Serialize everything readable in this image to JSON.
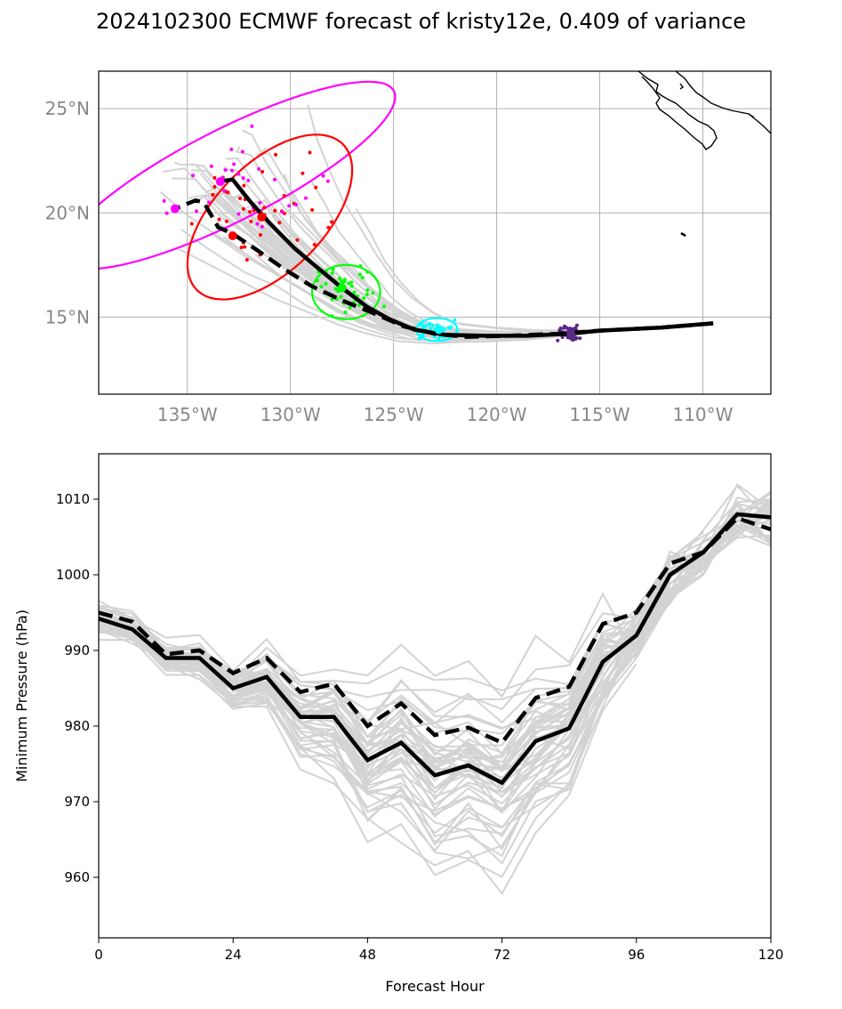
{
  "title": "2024102300 ECMWF forecast of kristy12e, 0.409 of variance",
  "chart_data": [
    {
      "type": "map-track",
      "x_ticks": [
        "135°W",
        "130°W",
        "125°W",
        "120°W",
        "115°W",
        "110°W"
      ],
      "y_ticks": [
        "15°N",
        "20°N",
        "25°N"
      ],
      "lon_range": [
        -139.3,
        -106.7
      ],
      "lat_range": [
        11.3,
        26.8
      ],
      "grid": true,
      "colors": {
        "ensemble": "#d3d3d3",
        "mean": "#000000",
        "control": "#000000",
        "clusters": [
          "#5b2a86",
          "#00ffff",
          "#00ff00",
          "#ff0000",
          "#ff00ff"
        ]
      },
      "mean_track": [
        [
          -109.5,
          14.7
        ],
        [
          -112.0,
          14.5
        ],
        [
          -115.0,
          14.35
        ],
        [
          -116.5,
          14.2
        ],
        [
          -118.5,
          14.1
        ],
        [
          -120.5,
          14.1
        ],
        [
          -122.5,
          14.15
        ],
        [
          -124.0,
          14.4
        ],
        [
          -125.2,
          14.9
        ],
        [
          -126.3,
          15.5
        ],
        [
          -127.5,
          16.4
        ],
        [
          -128.6,
          17.3
        ],
        [
          -129.8,
          18.3
        ],
        [
          -131.0,
          19.5
        ],
        [
          -132.0,
          20.6
        ],
        [
          -132.8,
          21.6
        ],
        [
          -133.5,
          21.5
        ]
      ],
      "control_track": [
        [
          -109.5,
          14.7
        ],
        [
          -112.0,
          14.5
        ],
        [
          -115.0,
          14.35
        ],
        [
          -117.0,
          14.2
        ],
        [
          -119.5,
          14.1
        ],
        [
          -121.5,
          14.05
        ],
        [
          -123.0,
          14.2
        ],
        [
          -124.5,
          14.55
        ],
        [
          -126.0,
          15.2
        ],
        [
          -127.5,
          15.8
        ],
        [
          -129.0,
          16.5
        ],
        [
          -130.3,
          17.3
        ],
        [
          -131.6,
          18.2
        ],
        [
          -132.8,
          19.0
        ],
        [
          -133.5,
          19.3
        ],
        [
          -134.2,
          20.5
        ],
        [
          -134.6,
          20.6
        ],
        [
          -135.6,
          20.2
        ]
      ],
      "ellipses": [
        {
          "color": "#ff00ff",
          "center": [
            -133.0,
            21.8
          ],
          "rx_deg": 9.0,
          "ry_deg": 2.2,
          "angle_deg": -27
        },
        {
          "color": "#ff0000",
          "center": [
            -131.0,
            19.8
          ],
          "rx_deg": 5.0,
          "ry_deg": 2.6,
          "angle_deg": -45
        },
        {
          "color": "#00ff00",
          "center": [
            -127.3,
            16.2
          ],
          "rx_deg": 1.65,
          "ry_deg": 1.3,
          "angle_deg": 0
        },
        {
          "color": "#00ffff",
          "center": [
            -122.9,
            14.4
          ],
          "rx_deg": 1.0,
          "ry_deg": 0.55,
          "angle_deg": 0
        }
      ],
      "cluster_centers": [
        {
          "color": "#ff00ff",
          "points": [
            [
              -133.4,
              21.5
            ],
            [
              -135.6,
              20.2
            ]
          ]
        },
        {
          "color": "#ff0000",
          "points": [
            [
              -131.4,
              19.8
            ],
            [
              -132.8,
              18.9
            ]
          ]
        },
        {
          "color": "#00ff00",
          "points": [
            [
              -127.5,
              16.4
            ]
          ]
        },
        {
          "color": "#00ffff",
          "points": [
            [
              -122.8,
              14.4
            ]
          ]
        },
        {
          "color": "#5b2a86",
          "points": [
            [
              -116.4,
              14.2
            ]
          ]
        }
      ]
    },
    {
      "type": "line",
      "x_label": "Forecast Hour",
      "y_label": "Minimum Pressure (hPa)",
      "x_ticks": [
        "0",
        "24",
        "48",
        "72",
        "96",
        "120"
      ],
      "y_ticks": [
        "960",
        "970",
        "980",
        "990",
        "1000",
        "1010"
      ],
      "xlim": [
        0,
        120
      ],
      "ylim": [
        952,
        1016
      ],
      "x": [
        0,
        6,
        12,
        18,
        24,
        30,
        36,
        42,
        48,
        54,
        60,
        66,
        72,
        78,
        84,
        90,
        96,
        102,
        108,
        114,
        120
      ],
      "mean": [
        994.2,
        992.8,
        989.0,
        989.0,
        985.0,
        986.5,
        981.2,
        981.2,
        975.5,
        977.8,
        973.5,
        974.8,
        972.5,
        978.0,
        979.7,
        988.5,
        992.0,
        1000.0,
        1003.0,
        1008.0,
        1007.6
      ],
      "control": [
        995.0,
        993.8,
        989.5,
        990.0,
        987.0,
        989.0,
        984.5,
        985.6,
        980.0,
        983.0,
        978.8,
        979.8,
        977.8,
        983.7,
        985.2,
        993.5,
        995.0,
        1001.5,
        1003.0,
        1007.5,
        1006.0
      ]
    }
  ]
}
